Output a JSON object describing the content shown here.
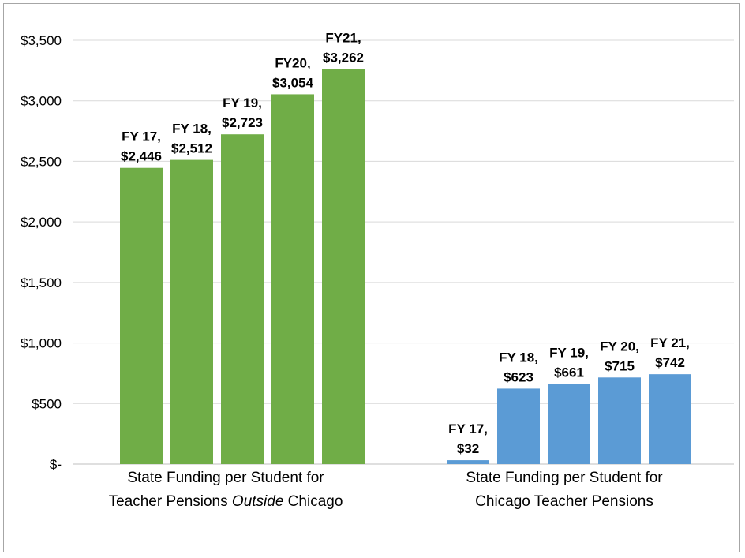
{
  "chart_data": {
    "type": "bar",
    "ylim": [
      0,
      3500
    ],
    "yticks": [
      "$-",
      "$500",
      "$1,000",
      "$1,500",
      "$2,000",
      "$2,500",
      "$3,000",
      "$3,500"
    ],
    "grid": true,
    "legend": "none",
    "groups": [
      {
        "category_lines": [
          "State Funding per Student for",
          "Teacher Pensions ",
          "Outside",
          " Chicago"
        ],
        "color": "#70ad47",
        "bars": [
          {
            "label": "FY 17,",
            "value_text": "$2,446",
            "value": 2446
          },
          {
            "label": "FY 18,",
            "value_text": "$2,512",
            "value": 2512
          },
          {
            "label": "FY 19,",
            "value_text": "$2,723",
            "value": 2723
          },
          {
            "label": "FY20,",
            "value_text": "$3,054",
            "value": 3054
          },
          {
            "label": "FY21,",
            "value_text": "$3,262",
            "value": 3262
          }
        ]
      },
      {
        "category_lines": [
          "State Funding per Student for",
          "Chicago Teacher Pensions"
        ],
        "color": "#5b9bd5",
        "bars": [
          {
            "label": "FY 17,",
            "value_text": "$32",
            "value": 32
          },
          {
            "label": "FY 18,",
            "value_text": "$623",
            "value": 623
          },
          {
            "label": "FY 19,",
            "value_text": "$661",
            "value": 661
          },
          {
            "label": "FY 20,",
            "value_text": "$715",
            "value": 715
          },
          {
            "label": "FY 21,",
            "value_text": "$742",
            "value": 742
          }
        ]
      }
    ]
  }
}
